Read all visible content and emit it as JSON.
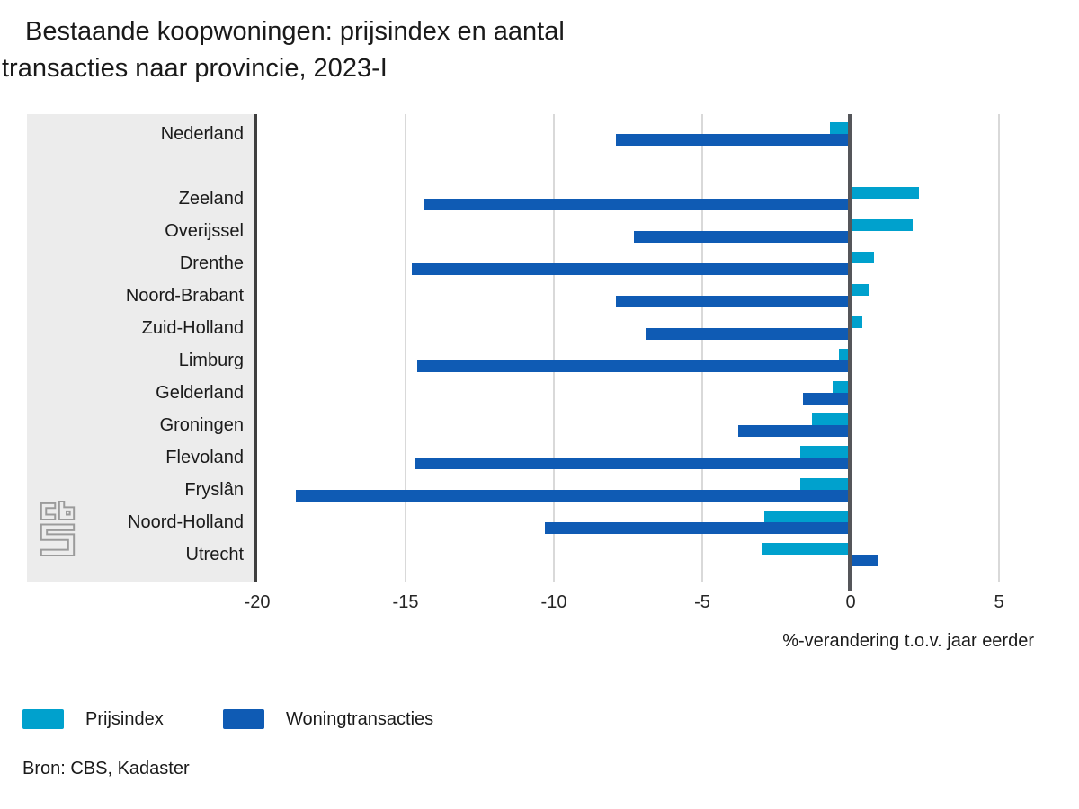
{
  "title": {
    "line1": "Bestaande koopwoningen: prijsindex en aantal",
    "line2": "transacties naar provincie, 2023-I"
  },
  "source": "Bron: CBS, Kadaster",
  "legend": {
    "items": [
      "Prijsindex",
      "Woningtransacties"
    ]
  },
  "colors": {
    "prijsindex": "#00a1cd",
    "woningtransacties": "#0f5bb4",
    "panel_background": "#ececec",
    "gridline": "#d9d9d9",
    "zero_line": "#55565a",
    "axis_line": "#3f3f3f"
  },
  "chart_data": {
    "type": "bar",
    "orientation": "horizontal",
    "title": "Bestaande koopwoningen: prijsindex en aantal transacties naar provincie, 2023-I",
    "xlabel": "%-verandering t.o.v. jaar eerder",
    "xlim": [
      -20,
      7.2
    ],
    "grid": true,
    "legend_position": "bottom",
    "x_ticks": [
      {
        "value": -20,
        "label": "-20"
      },
      {
        "value": -15,
        "label": "-15"
      },
      {
        "value": -10,
        "label": "-10"
      },
      {
        "value": -5,
        "label": "-5"
      },
      {
        "value": 0,
        "label": "0"
      },
      {
        "value": 5,
        "label": "5"
      }
    ],
    "categories": [
      "Nederland",
      "Zeeland",
      "Overijssel",
      "Drenthe",
      "Noord-Brabant",
      "Zuid-Holland",
      "Limburg",
      "Gelderland",
      "Groningen",
      "Flevoland",
      "Fryslân",
      "Noord-Holland",
      "Utrecht"
    ],
    "series": [
      {
        "name": "Prijsindex",
        "color": "#00a1cd",
        "values": [
          -0.7,
          2.3,
          2.1,
          0.8,
          0.6,
          0.4,
          -0.4,
          -0.6,
          -1.3,
          -1.7,
          -1.7,
          -2.9,
          -3.0
        ]
      },
      {
        "name": "Woningtransacties",
        "color": "#0f5bb4",
        "values": [
          -7.9,
          -14.4,
          -7.3,
          -14.8,
          -7.9,
          -6.9,
          -14.6,
          -1.6,
          -3.8,
          -14.7,
          -18.7,
          -10.3,
          0.9
        ]
      }
    ]
  }
}
